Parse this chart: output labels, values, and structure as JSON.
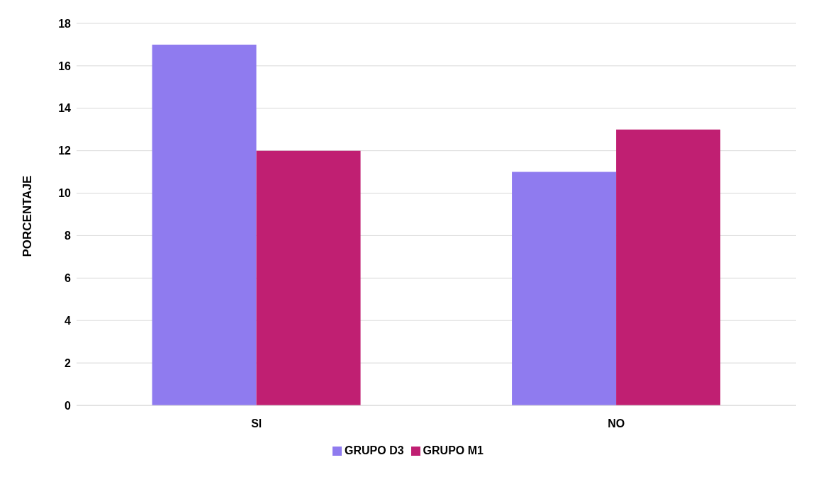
{
  "chart_data": {
    "type": "bar",
    "ylabel": "PORCENTAJE",
    "categories": [
      "SI",
      "NO"
    ],
    "series": [
      {
        "name": "GRUPO D3",
        "color": "#8f7bef",
        "values": [
          17,
          11
        ]
      },
      {
        "name": "GRUPO M1",
        "color": "#c01f72",
        "values": [
          12,
          13
        ]
      }
    ],
    "ylim": [
      0,
      18
    ],
    "yticks": [
      0,
      2,
      4,
      6,
      8,
      10,
      12,
      14,
      16,
      18
    ],
    "grid": "y",
    "legend": "bottom"
  }
}
